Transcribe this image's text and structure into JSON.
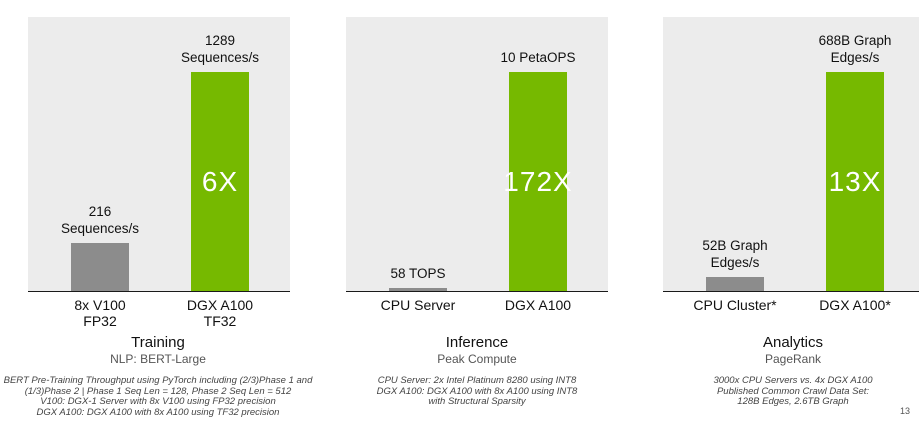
{
  "chart_data": [
    {
      "type": "bar",
      "title": "Training",
      "subtitle": "NLP: BERT-Large",
      "categories": [
        "8x V100\nFP32",
        "DGX A100\nTF32"
      ],
      "values": [
        216,
        1289
      ],
      "unit": "Sequences/s",
      "value_labels": [
        "216\nSequences/s",
        "1289\nSequences/s"
      ],
      "speedup_label": "6X",
      "colors": [
        "#8c8c8c",
        "#76b900"
      ],
      "footnote": "BERT Pre-Training Throughput using PyTorch including (2/3)Phase 1 and (1/3)Phase 2 | Phase 1 Seq Len = 128, Phase 2 Seq Len = 512\nV100: DGX-1 Server with 8x V100 using FP32 precision\nDGX A100: DGX A100 with 8x A100 using TF32 precision"
    },
    {
      "type": "bar",
      "title": "Inference",
      "subtitle": "Peak Compute",
      "categories": [
        "CPU Server",
        "DGX A100"
      ],
      "values": [
        58,
        10000
      ],
      "unit": "TOPS",
      "value_labels": [
        "58 TOPS",
        "10 PetaOPS"
      ],
      "speedup_label": "172X",
      "colors": [
        "#8c8c8c",
        "#76b900"
      ],
      "footnote": "CPU Server: 2x Intel Platinum 8280 using INT8\nDGX A100: DGX A100 with 8x A100 using INT8\nwith Structural Sparsity"
    },
    {
      "type": "bar",
      "title": "Analytics",
      "subtitle": "PageRank",
      "categories": [
        "CPU Cluster*",
        "DGX A100*"
      ],
      "values": [
        52,
        688
      ],
      "unit": "B Graph Edges/s",
      "value_labels": [
        "52B Graph\nEdges/s",
        "688B Graph\nEdges/s"
      ],
      "speedup_label": "13X",
      "colors": [
        "#8c8c8c",
        "#76b900"
      ],
      "footnote": "3000x CPU Servers vs. 4x DGX A100\nPublished Common Crawl Data Set:\n128B Edges, 2.6TB Graph"
    }
  ],
  "page_number": "13"
}
